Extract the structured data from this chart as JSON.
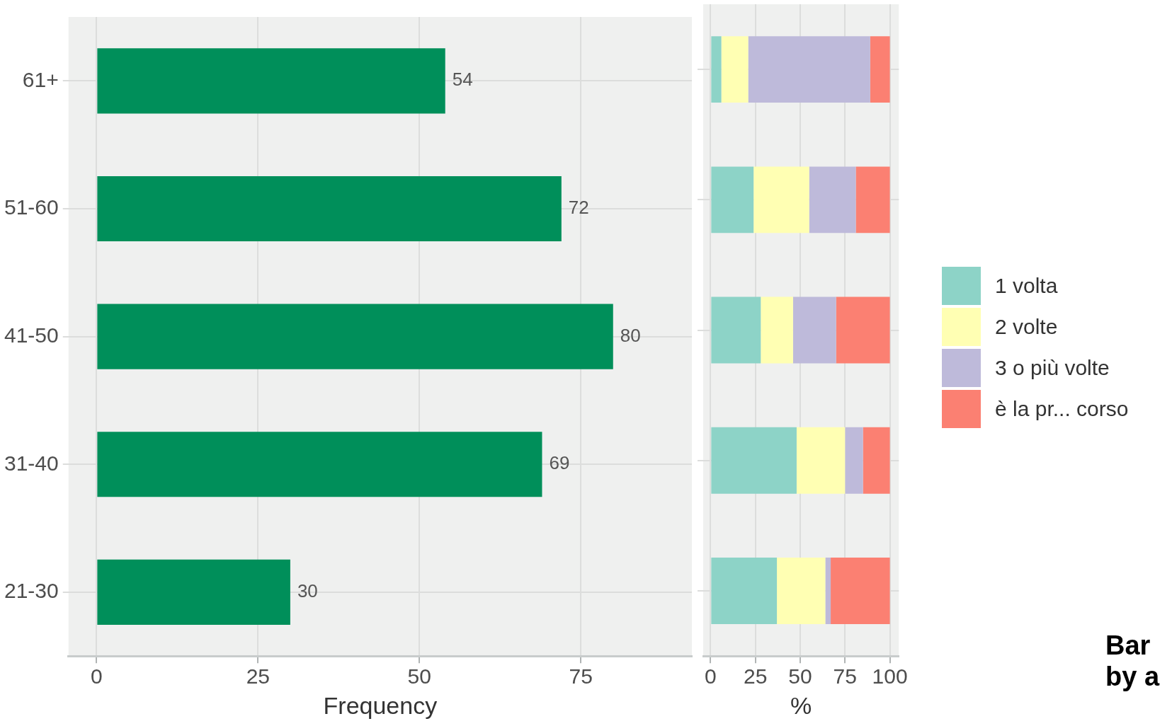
{
  "chart_data": [
    {
      "type": "bar",
      "orientation": "horizontal",
      "categories": [
        "61+",
        "51-60",
        "41-50",
        "31-40",
        "21-30"
      ],
      "values": [
        54,
        72,
        80,
        69,
        30
      ],
      "color": "#008f5a",
      "xlim": [
        -4.35,
        92.2
      ],
      "xticks": [
        0,
        25,
        50,
        75
      ],
      "xlabel": "Frequency",
      "data_labels": true,
      "grid": true,
      "legend": false
    },
    {
      "type": "bar",
      "orientation": "horizontal",
      "stacked": true,
      "categories": [
        null,
        null,
        null,
        null,
        null
      ],
      "series": [
        {
          "name": "1 volta",
          "color": "#8dd3c7",
          "values": [
            6,
            24,
            28,
            48,
            37
          ]
        },
        {
          "name": "2 volte",
          "color": "#ffffb3",
          "values": [
            15,
            31,
            18,
            27,
            27
          ]
        },
        {
          "name": "3 o più volte",
          "color": "#bebada",
          "values": [
            68,
            26,
            24,
            10,
            3
          ]
        },
        {
          "name": "è la pr... corso",
          "color": "#fb8072",
          "values": [
            11,
            19,
            30,
            15,
            33
          ]
        }
      ],
      "xlim": [
        -4.1,
        105
      ],
      "xticks": [
        0,
        25,
        50,
        75,
        100
      ],
      "xlabel": "%",
      "tick_labels": "x",
      "grid": true,
      "legend": "right",
      "annotations": [
        "Bar by a"
      ]
    }
  ]
}
